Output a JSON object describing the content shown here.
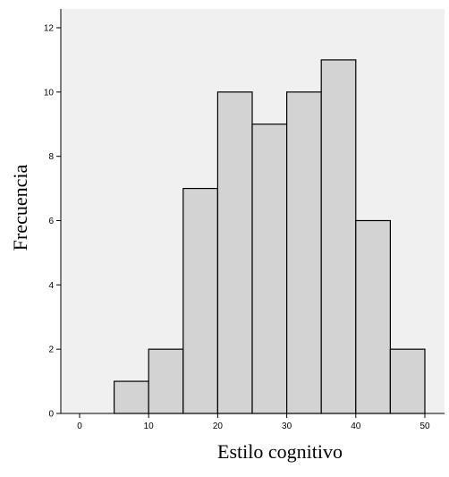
{
  "chart_data": {
    "type": "bar",
    "subtype": "histogram",
    "title": "",
    "xlabel": "Estilo cognitivo",
    "ylabel": "Frecuencia",
    "bins": [
      {
        "start": 5,
        "end": 10,
        "value": 1
      },
      {
        "start": 10,
        "end": 15,
        "value": 2
      },
      {
        "start": 15,
        "end": 20,
        "value": 7
      },
      {
        "start": 20,
        "end": 25,
        "value": 10
      },
      {
        "start": 25,
        "end": 30,
        "value": 9
      },
      {
        "start": 30,
        "end": 35,
        "value": 10
      },
      {
        "start": 35,
        "end": 40,
        "value": 11
      },
      {
        "start": 40,
        "end": 45,
        "value": 6
      },
      {
        "start": 45,
        "end": 50,
        "value": 2
      }
    ],
    "xlim": [
      -4,
      53
    ],
    "ylim": [
      0,
      12
    ],
    "xticks": [
      "0",
      "10",
      "20",
      "30",
      "40",
      "50"
    ],
    "yticks": [
      "0",
      "2",
      "4",
      "6",
      "8",
      "10",
      "12"
    ],
    "grid": false,
    "colors": {
      "plot_background": "#f0f0f0",
      "bar_fill": "#d3d3d3",
      "bar_stroke": "#000000",
      "axis": "#000000"
    }
  }
}
